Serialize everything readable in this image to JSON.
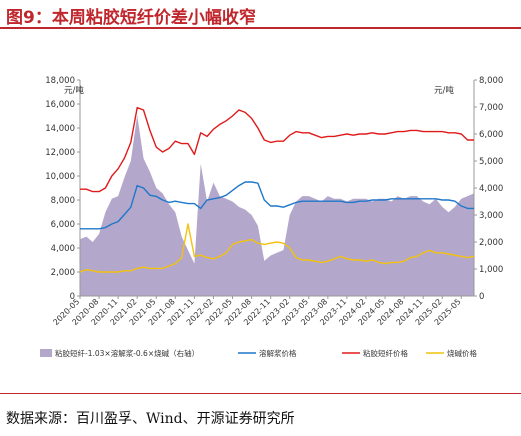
{
  "figure": {
    "title": "图9：本周粘胶短纤价差小幅收窄",
    "source": "数据来源：百川盈孚、Wind、开源证券研究所"
  },
  "chart_data": {
    "type": "line",
    "left_unit": "元/吨",
    "right_unit": "元/吨",
    "ylim_left": [
      0,
      18000
    ],
    "ylim_right": [
      0,
      8000
    ],
    "yticks_left": [
      "0",
      "2,000",
      "4,000",
      "6,000",
      "8,000",
      "10,000",
      "12,000",
      "14,000",
      "16,000",
      "18,000"
    ],
    "yticks_right": [
      "0",
      "1,000",
      "2,000",
      "3,000",
      "4,000",
      "5,000",
      "6,000",
      "7,000",
      "8,000"
    ],
    "x_categories": [
      "2020-05",
      "2020-08",
      "2020-11",
      "2021-02",
      "2021-05",
      "2021-08",
      "2021-11",
      "2022-02",
      "2022-05",
      "2022-08",
      "2022-11",
      "2023-02",
      "2023-05",
      "2023-08",
      "2023-11",
      "2024-02",
      "2024-05",
      "2024-08",
      "2024-11",
      "2025-02",
      "2025-05"
    ],
    "x_range": [
      "2020-05",
      "2025-07"
    ],
    "series": [
      {
        "name": "粘胶短纤-1.03×溶解浆-0.6×烧碱（右轴）",
        "type": "area",
        "axis": "right",
        "color": "#b4a7cc",
        "x": [
          "2020-05",
          "2020-06",
          "2020-07",
          "2020-08",
          "2020-09",
          "2020-10",
          "2020-11",
          "2020-12",
          "2021-01",
          "2021-02",
          "2021-03",
          "2021-04",
          "2021-05",
          "2021-06",
          "2021-07",
          "2021-08",
          "2021-09",
          "2021-10",
          "2021-11",
          "2021-12",
          "2022-01",
          "2022-02",
          "2022-03",
          "2022-04",
          "2022-05",
          "2022-06",
          "2022-07",
          "2022-08",
          "2022-09",
          "2022-10",
          "2022-11",
          "2022-12",
          "2023-01",
          "2023-02",
          "2023-03",
          "2023-04",
          "2023-05",
          "2023-06",
          "2023-07",
          "2023-08",
          "2023-09",
          "2023-10",
          "2023-11",
          "2023-12",
          "2024-01",
          "2024-02",
          "2024-03",
          "2024-04",
          "2024-05",
          "2024-06",
          "2024-07",
          "2024-08",
          "2024-09",
          "2024-10",
          "2024-11",
          "2024-12",
          "2025-01",
          "2025-02",
          "2025-03",
          "2025-04",
          "2025-05",
          "2025-06",
          "2025-07"
        ],
        "values": [
          2100,
          2200,
          2000,
          2300,
          3100,
          3600,
          3700,
          4400,
          5000,
          6700,
          5100,
          4600,
          4000,
          3800,
          3400,
          3100,
          2200,
          1700,
          1200,
          4900,
          3500,
          4200,
          3700,
          3600,
          3500,
          3300,
          3200,
          3000,
          2600,
          1300,
          1500,
          1600,
          1700,
          3000,
          3500,
          3700,
          3700,
          3600,
          3500,
          3700,
          3600,
          3600,
          3500,
          3600,
          3600,
          3600,
          3500,
          3600,
          3600,
          3500,
          3700,
          3600,
          3700,
          3700,
          3500,
          3400,
          3600,
          3300,
          3100,
          3300,
          3600,
          3700,
          3800
        ]
      },
      {
        "name": "溶解浆价格",
        "type": "line",
        "axis": "left",
        "color": "#1f77c8",
        "x": [
          "2020-05",
          "2020-06",
          "2020-07",
          "2020-08",
          "2020-09",
          "2020-10",
          "2020-11",
          "2020-12",
          "2021-01",
          "2021-02",
          "2021-03",
          "2021-04",
          "2021-05",
          "2021-06",
          "2021-07",
          "2021-08",
          "2021-09",
          "2021-10",
          "2021-11",
          "2021-12",
          "2022-01",
          "2022-02",
          "2022-03",
          "2022-04",
          "2022-05",
          "2022-06",
          "2022-07",
          "2022-08",
          "2022-09",
          "2022-10",
          "2022-11",
          "2022-12",
          "2023-01",
          "2023-02",
          "2023-03",
          "2023-04",
          "2023-05",
          "2023-06",
          "2023-07",
          "2023-08",
          "2023-09",
          "2023-10",
          "2023-11",
          "2023-12",
          "2024-01",
          "2024-02",
          "2024-03",
          "2024-04",
          "2024-05",
          "2024-06",
          "2024-07",
          "2024-08",
          "2024-09",
          "2024-10",
          "2024-11",
          "2024-12",
          "2025-01",
          "2025-02",
          "2025-03",
          "2025-04",
          "2025-05",
          "2025-06",
          "2025-07"
        ],
        "values": [
          5600,
          5600,
          5600,
          5600,
          5700,
          6000,
          6200,
          6800,
          7400,
          9200,
          9000,
          8400,
          8300,
          8000,
          7800,
          7900,
          7800,
          7700,
          7700,
          7300,
          8000,
          8100,
          8200,
          8400,
          8800,
          9200,
          9500,
          9500,
          9400,
          8000,
          7500,
          7500,
          7400,
          7600,
          7800,
          7900,
          7900,
          7900,
          7900,
          7900,
          7900,
          7900,
          7800,
          7800,
          7900,
          7900,
          8000,
          8000,
          8000,
          8100,
          8100,
          8100,
          8100,
          8100,
          8100,
          8100,
          8100,
          8000,
          8000,
          7900,
          7500,
          7300,
          7300
        ]
      },
      {
        "name": "粘胶短纤价格",
        "type": "line",
        "axis": "left",
        "color": "#e01a1a",
        "x": [
          "2020-05",
          "2020-06",
          "2020-07",
          "2020-08",
          "2020-09",
          "2020-10",
          "2020-11",
          "2020-12",
          "2021-01",
          "2021-02",
          "2021-03",
          "2021-04",
          "2021-05",
          "2021-06",
          "2021-07",
          "2021-08",
          "2021-09",
          "2021-10",
          "2021-11",
          "2021-12",
          "2022-01",
          "2022-02",
          "2022-03",
          "2022-04",
          "2022-05",
          "2022-06",
          "2022-07",
          "2022-08",
          "2022-09",
          "2022-10",
          "2022-11",
          "2022-12",
          "2023-01",
          "2023-02",
          "2023-03",
          "2023-04",
          "2023-05",
          "2023-06",
          "2023-07",
          "2023-08",
          "2023-09",
          "2023-10",
          "2023-11",
          "2023-12",
          "2024-01",
          "2024-02",
          "2024-03",
          "2024-04",
          "2024-05",
          "2024-06",
          "2024-07",
          "2024-08",
          "2024-09",
          "2024-10",
          "2024-11",
          "2024-12",
          "2025-01",
          "2025-02",
          "2025-03",
          "2025-04",
          "2025-05",
          "2025-06",
          "2025-07"
        ],
        "values": [
          8900,
          8900,
          8700,
          8700,
          9000,
          10000,
          10600,
          11500,
          12800,
          15700,
          15500,
          13800,
          12400,
          12000,
          12300,
          12900,
          12700,
          12700,
          11800,
          13600,
          13300,
          13900,
          14300,
          14600,
          15000,
          15500,
          15300,
          14800,
          14000,
          13000,
          12800,
          12900,
          12900,
          13400,
          13700,
          13600,
          13600,
          13400,
          13200,
          13300,
          13300,
          13400,
          13500,
          13400,
          13500,
          13500,
          13600,
          13500,
          13500,
          13600,
          13700,
          13700,
          13800,
          13800,
          13700,
          13700,
          13700,
          13700,
          13600,
          13600,
          13500,
          13000,
          13000
        ]
      },
      {
        "name": "烧碱价格",
        "type": "line",
        "axis": "left",
        "color": "#f2c20c",
        "x": [
          "2020-05",
          "2020-06",
          "2020-07",
          "2020-08",
          "2020-09",
          "2020-10",
          "2020-11",
          "2020-12",
          "2021-01",
          "2021-02",
          "2021-03",
          "2021-04",
          "2021-05",
          "2021-06",
          "2021-07",
          "2021-08",
          "2021-09",
          "2021-10",
          "2021-11",
          "2021-12",
          "2022-01",
          "2022-02",
          "2022-03",
          "2022-04",
          "2022-05",
          "2022-06",
          "2022-07",
          "2022-08",
          "2022-09",
          "2022-10",
          "2022-11",
          "2022-12",
          "2023-01",
          "2023-02",
          "2023-03",
          "2023-04",
          "2023-05",
          "2023-06",
          "2023-07",
          "2023-08",
          "2023-09",
          "2023-10",
          "2023-11",
          "2023-12",
          "2024-01",
          "2024-02",
          "2024-03",
          "2024-04",
          "2024-05",
          "2024-06",
          "2024-07",
          "2024-08",
          "2024-09",
          "2024-10",
          "2024-11",
          "2024-12",
          "2025-01",
          "2025-02",
          "2025-03",
          "2025-04",
          "2025-05",
          "2025-06",
          "2025-07"
        ],
        "values": [
          2000,
          2200,
          2100,
          2000,
          2000,
          2000,
          2000,
          2100,
          2100,
          2300,
          2400,
          2300,
          2300,
          2300,
          2500,
          2700,
          3200,
          6000,
          3300,
          3400,
          3200,
          3100,
          3300,
          3600,
          4300,
          4500,
          4600,
          4700,
          4400,
          4300,
          4400,
          4500,
          4400,
          4000,
          3200,
          3000,
          3000,
          2900,
          2800,
          2900,
          3100,
          3300,
          3100,
          3000,
          3000,
          2900,
          3000,
          2800,
          2700,
          2800,
          2800,
          2900,
          3200,
          3300,
          3600,
          3800,
          3600,
          3600,
          3500,
          3400,
          3300,
          3200,
          3300
        ]
      }
    ]
  }
}
